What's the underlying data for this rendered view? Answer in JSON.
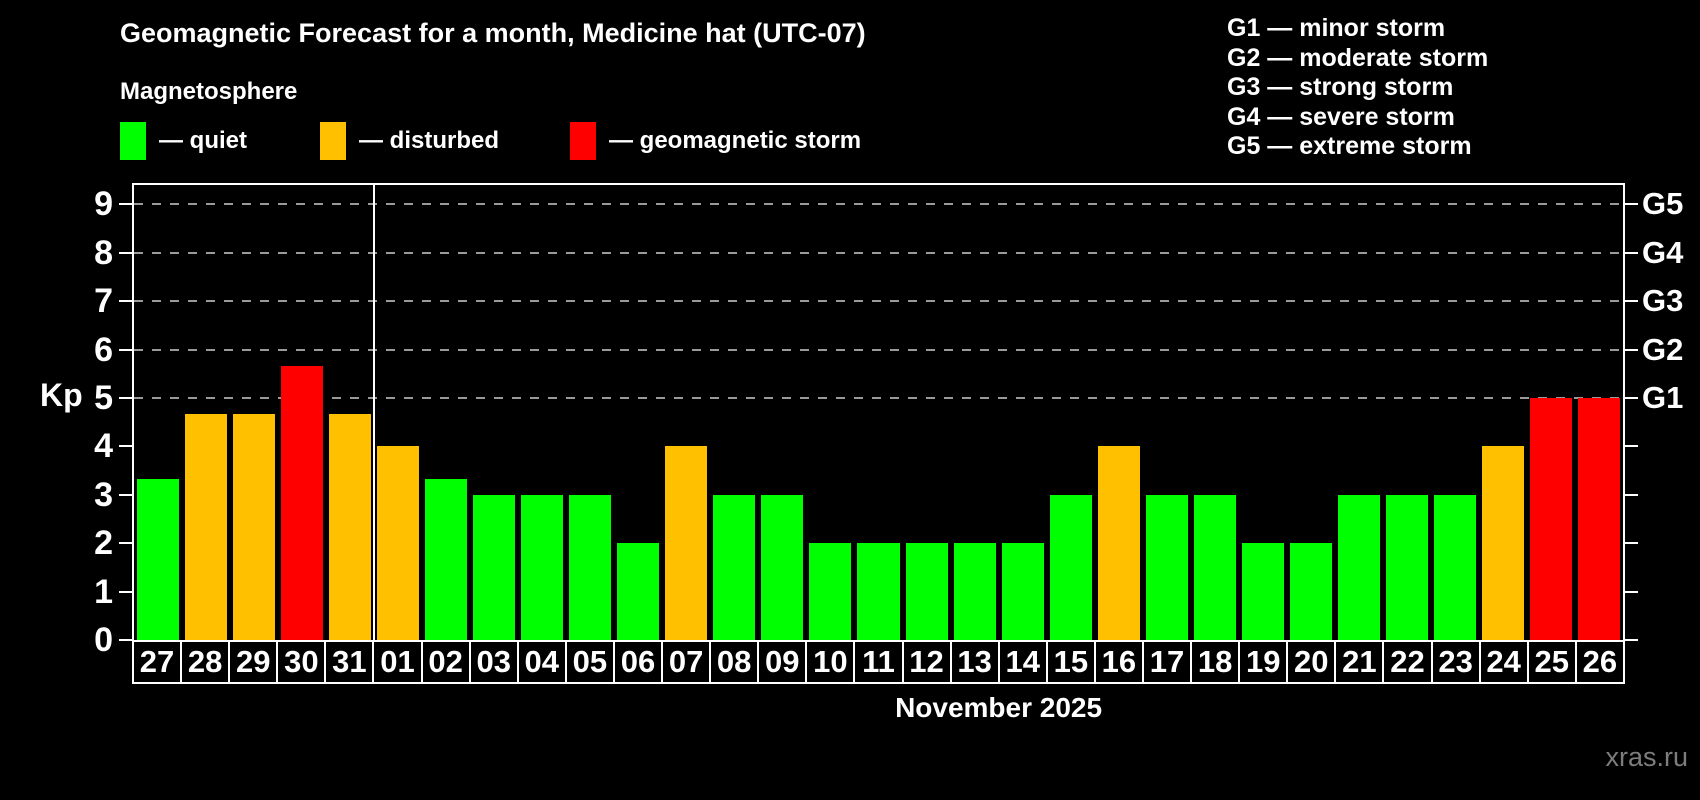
{
  "title": "Geomagnetic Forecast for a month, Medicine hat (UTC-07)",
  "subtitle": "Magnetosphere",
  "legend": {
    "items": [
      {
        "key": "quiet",
        "label": "— quiet",
        "color": "#00ff00"
      },
      {
        "key": "disturbed",
        "label": "— disturbed",
        "color": "#ffc000"
      },
      {
        "key": "storm",
        "label": "— geomagnetic storm",
        "color": "#ff0000"
      }
    ]
  },
  "storm_scale_legend": [
    "G1 — minor storm",
    "G2 — moderate storm",
    "G3 — strong storm",
    "G4 — severe storm",
    "G5 — extreme storm"
  ],
  "watermark": "xras.ru",
  "chart_data": {
    "type": "bar",
    "title": "Geomagnetic Forecast for a month, Medicine hat (UTC-07)",
    "ylabel": "Kp",
    "xlabel": "November 2025",
    "ylim": [
      0,
      9.4
    ],
    "yticks": [
      0,
      1,
      2,
      3,
      4,
      5,
      6,
      7,
      8,
      9
    ],
    "grid_kp": [
      5,
      6,
      7,
      8,
      9
    ],
    "right_labels": [
      {
        "kp": 5,
        "text": "G1"
      },
      {
        "kp": 6,
        "text": "G2"
      },
      {
        "kp": 7,
        "text": "G3"
      },
      {
        "kp": 8,
        "text": "G4"
      },
      {
        "kp": 9,
        "text": "G5"
      }
    ],
    "legend_position": "top-left",
    "grid": "dashed-horizontal-on-G-levels-only",
    "month_divider_after": "31",
    "colors": {
      "quiet": "#00ff00",
      "disturbed": "#ffc000",
      "storm": "#ff0000"
    },
    "thresholds": {
      "disturbed_min_kp": 4,
      "storm_min_kp": 5
    },
    "days": [
      {
        "day": "27",
        "kp": 3.33,
        "status": "quiet"
      },
      {
        "day": "28",
        "kp": 4.67,
        "status": "disturbed"
      },
      {
        "day": "29",
        "kp": 4.67,
        "status": "disturbed"
      },
      {
        "day": "30",
        "kp": 5.67,
        "status": "storm"
      },
      {
        "day": "31",
        "kp": 4.67,
        "status": "disturbed"
      },
      {
        "day": "01",
        "kp": 4.0,
        "status": "disturbed"
      },
      {
        "day": "02",
        "kp": 3.33,
        "status": "quiet"
      },
      {
        "day": "03",
        "kp": 3.0,
        "status": "quiet"
      },
      {
        "day": "04",
        "kp": 3.0,
        "status": "quiet"
      },
      {
        "day": "05",
        "kp": 3.0,
        "status": "quiet"
      },
      {
        "day": "06",
        "kp": 2.0,
        "status": "quiet"
      },
      {
        "day": "07",
        "kp": 4.0,
        "status": "disturbed"
      },
      {
        "day": "08",
        "kp": 3.0,
        "status": "quiet"
      },
      {
        "day": "09",
        "kp": 3.0,
        "status": "quiet"
      },
      {
        "day": "10",
        "kp": 2.0,
        "status": "quiet"
      },
      {
        "day": "11",
        "kp": 2.0,
        "status": "quiet"
      },
      {
        "day": "12",
        "kp": 2.0,
        "status": "quiet"
      },
      {
        "day": "13",
        "kp": 2.0,
        "status": "quiet"
      },
      {
        "day": "14",
        "kp": 2.0,
        "status": "quiet"
      },
      {
        "day": "15",
        "kp": 3.0,
        "status": "quiet"
      },
      {
        "day": "16",
        "kp": 4.0,
        "status": "disturbed"
      },
      {
        "day": "17",
        "kp": 3.0,
        "status": "quiet"
      },
      {
        "day": "18",
        "kp": 3.0,
        "status": "quiet"
      },
      {
        "day": "19",
        "kp": 2.0,
        "status": "quiet"
      },
      {
        "day": "20",
        "kp": 2.0,
        "status": "quiet"
      },
      {
        "day": "21",
        "kp": 3.0,
        "status": "quiet"
      },
      {
        "day": "22",
        "kp": 3.0,
        "status": "quiet"
      },
      {
        "day": "23",
        "kp": 3.0,
        "status": "quiet"
      },
      {
        "day": "24",
        "kp": 4.0,
        "status": "disturbed"
      },
      {
        "day": "25",
        "kp": 5.0,
        "status": "storm"
      },
      {
        "day": "26",
        "kp": 5.0,
        "status": "storm"
      }
    ]
  }
}
